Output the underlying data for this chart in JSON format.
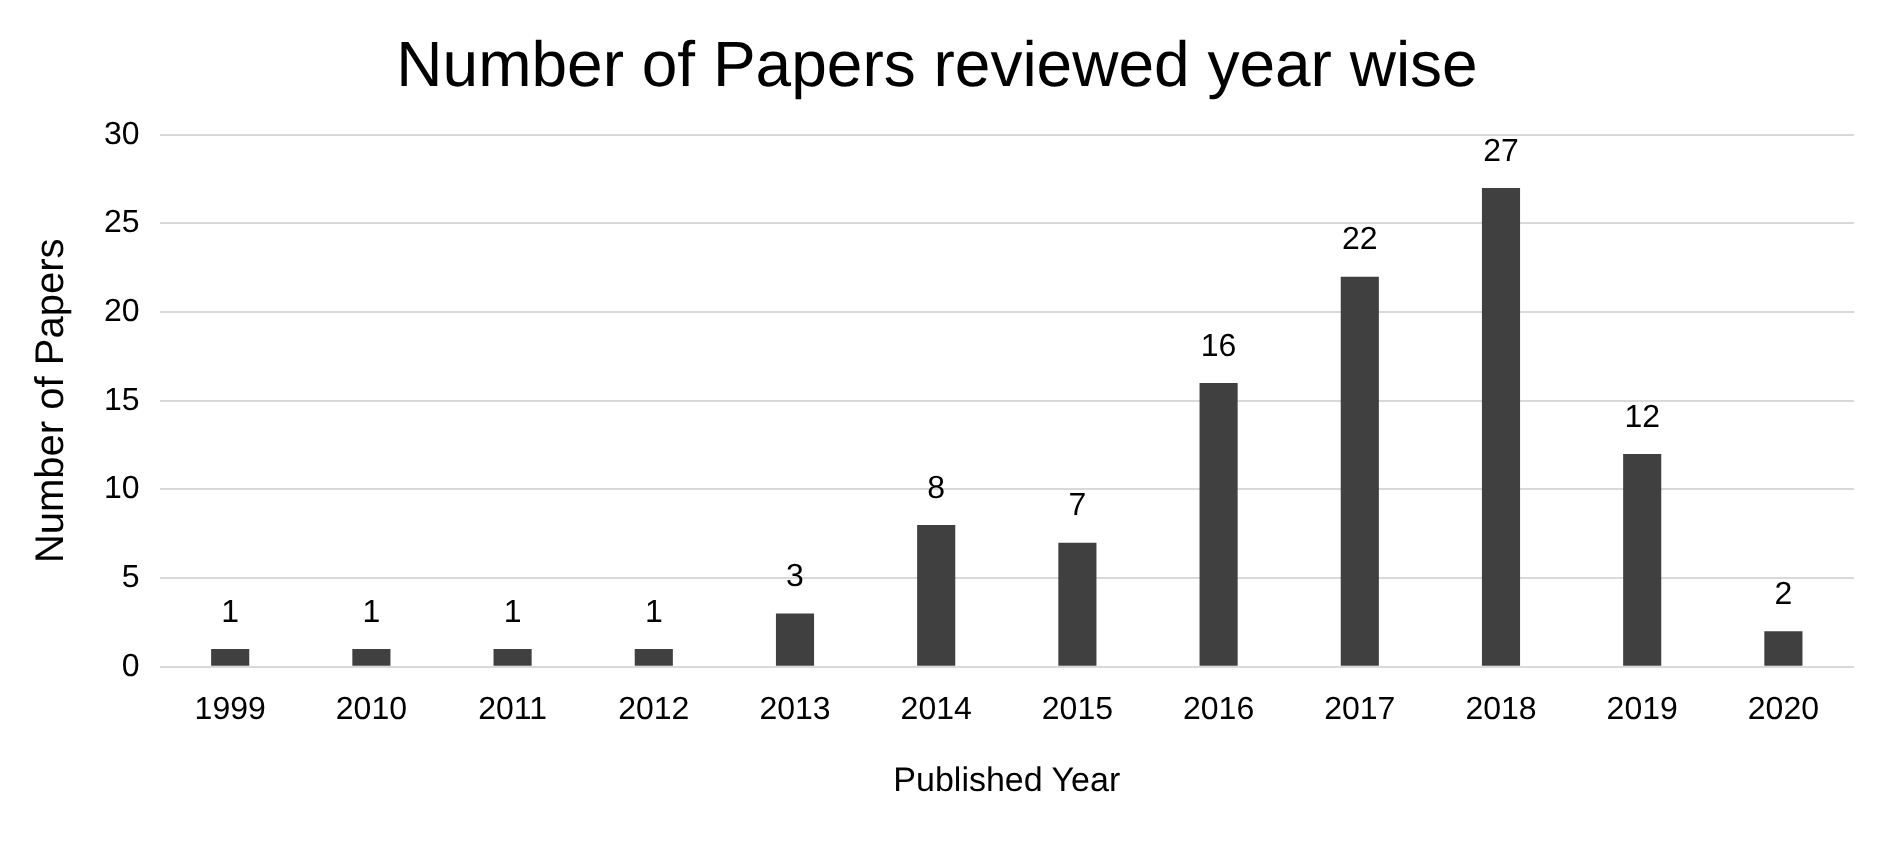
{
  "chart_data": {
    "type": "bar",
    "title": "Number of Papers reviewed year wise",
    "xlabel": "Published Year",
    "ylabel": "Number of Papers",
    "categories": [
      "1999",
      "2010",
      "2011",
      "2012",
      "2013",
      "2014",
      "2015",
      "2016",
      "2017",
      "2018",
      "2019",
      "2020"
    ],
    "values": [
      1,
      1,
      1,
      1,
      3,
      8,
      7,
      16,
      22,
      27,
      12,
      2
    ],
    "data_labels": true,
    "color": "#404040",
    "ylim": [
      0,
      30
    ],
    "yticks": [
      0,
      5,
      10,
      15,
      20,
      25,
      30
    ],
    "grid": "y"
  }
}
